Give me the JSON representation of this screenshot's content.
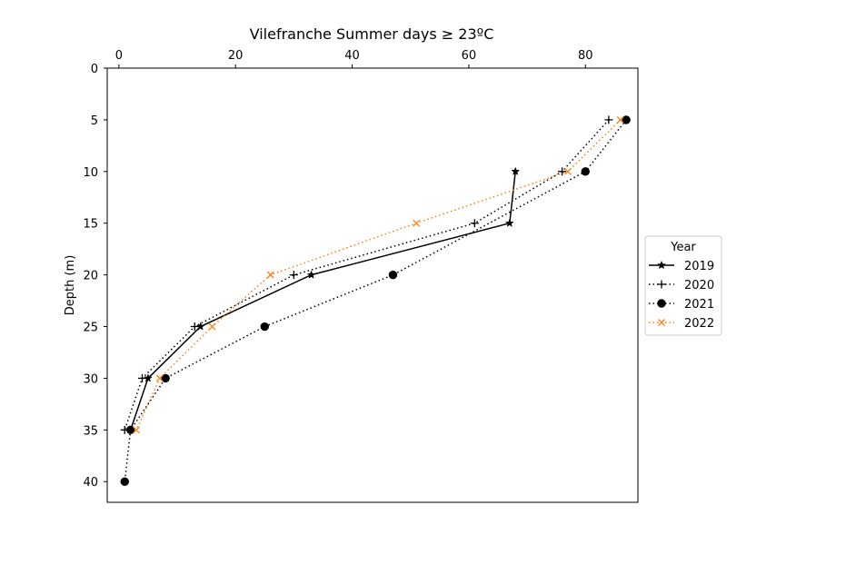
{
  "chart_data": {
    "type": "line",
    "title": "Vilefranche Summer days ≥ 23ºC",
    "xlabel": "",
    "ylabel": "Depth (m)",
    "xlim": [
      -2,
      89
    ],
    "ylim": [
      42,
      0
    ],
    "x_axis_position": "top",
    "y_inverted": true,
    "grid": false,
    "x_ticks": [
      0,
      20,
      40,
      60,
      80
    ],
    "y_ticks": [
      0,
      5,
      10,
      15,
      20,
      25,
      30,
      35,
      40
    ],
    "legend": {
      "title": "Year",
      "placement": "outside right"
    },
    "series": [
      {
        "name": "2019",
        "color": "#000000",
        "linestyle": "solid",
        "marker": "star",
        "points": [
          [
            68,
            10
          ],
          [
            67,
            15
          ],
          [
            33,
            20
          ],
          [
            14,
            25
          ],
          [
            5,
            30
          ],
          [
            2,
            35
          ]
        ]
      },
      {
        "name": "2020",
        "color": "#000000",
        "linestyle": "dotted",
        "marker": "plus",
        "points": [
          [
            84,
            5
          ],
          [
            76,
            10
          ],
          [
            61,
            15
          ],
          [
            30,
            20
          ],
          [
            13,
            25
          ],
          [
            4,
            30
          ],
          [
            1,
            35
          ]
        ]
      },
      {
        "name": "2021",
        "color": "#000000",
        "linestyle": "dotted",
        "marker": "circle",
        "points": [
          [
            87,
            5
          ],
          [
            80,
            10
          ],
          [
            47,
            20
          ],
          [
            25,
            25
          ],
          [
            8,
            30
          ],
          [
            2,
            35
          ],
          [
            1,
            40
          ]
        ]
      },
      {
        "name": "2022",
        "color": "#ff7f0e",
        "linestyle": "dotted",
        "marker": "x",
        "points": [
          [
            86,
            5
          ],
          [
            77,
            10
          ],
          [
            51,
            15
          ],
          [
            26,
            20
          ],
          [
            16,
            25
          ],
          [
            7,
            30
          ],
          [
            3,
            35
          ]
        ]
      }
    ]
  }
}
